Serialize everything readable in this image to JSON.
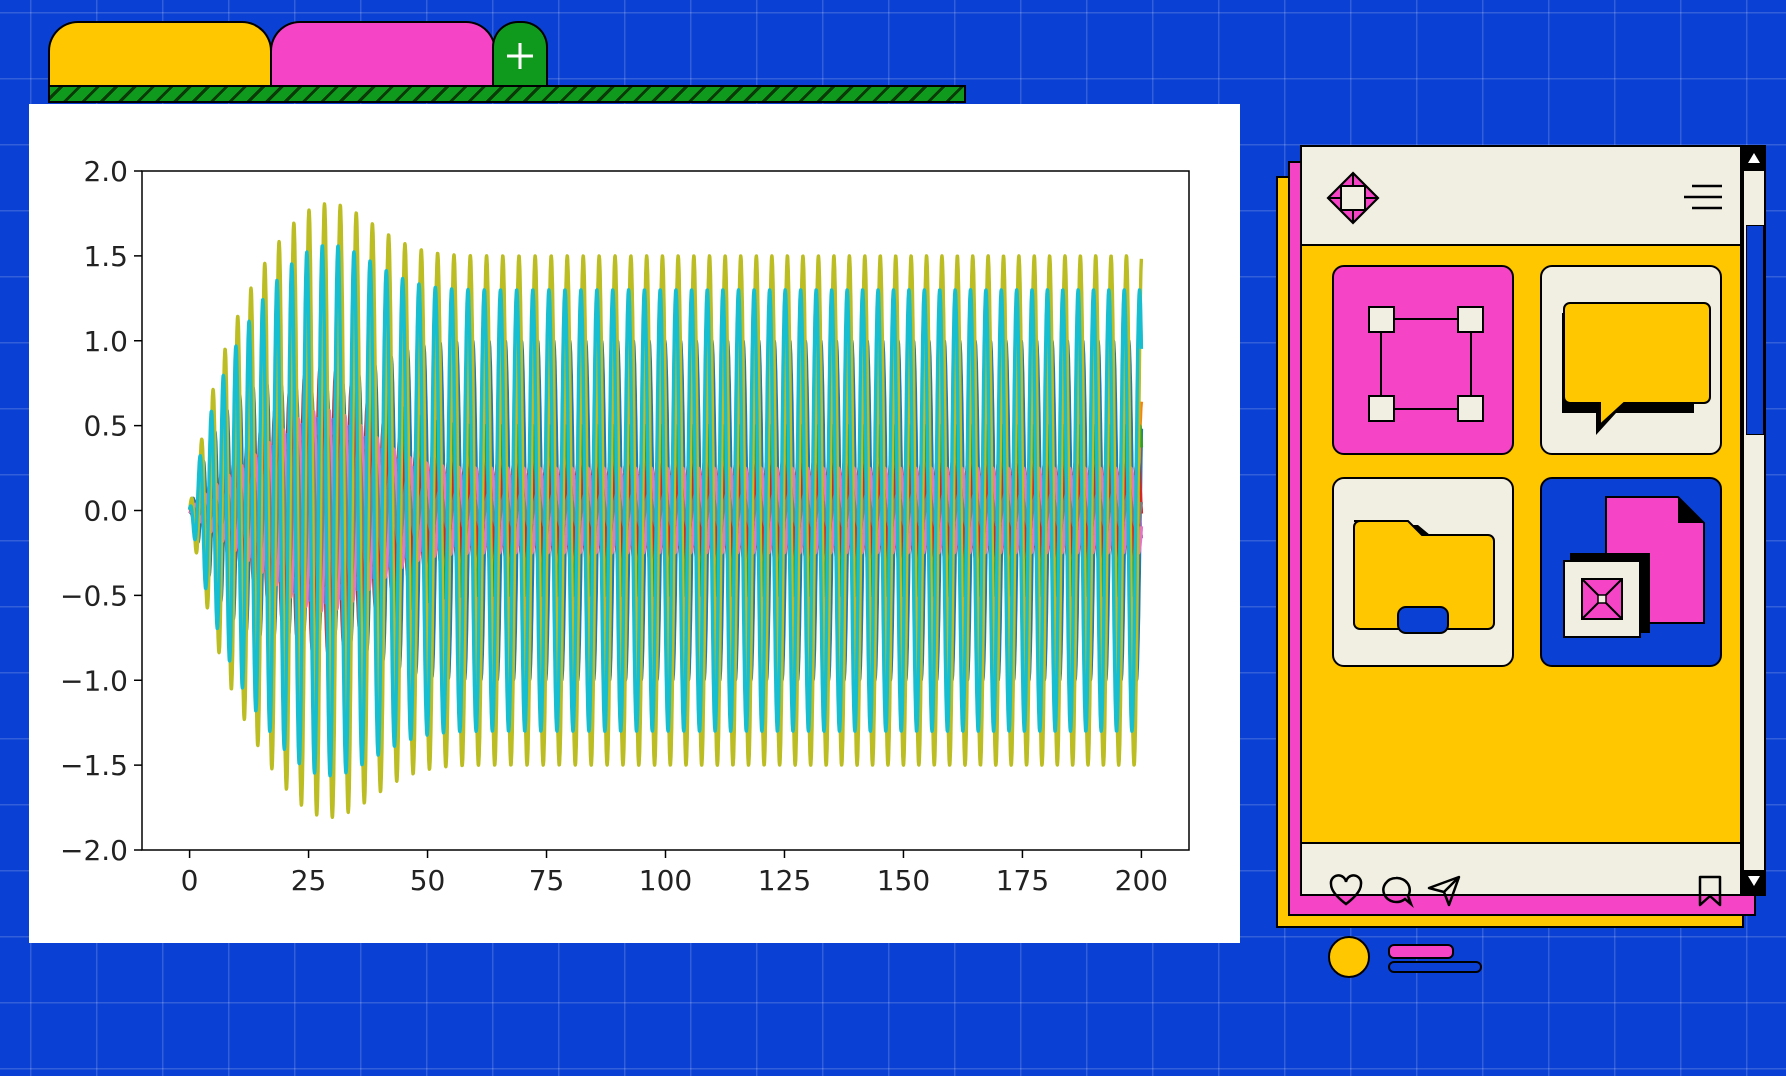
{
  "colors": {
    "background": "#0a40d3",
    "yellow": "#ffc700",
    "pink": "#f545c6",
    "green": "#109a1d",
    "cream": "#f1eee2"
  },
  "tabs": {
    "items": [
      {
        "name": "yellow-tab",
        "color": "#ffc700"
      },
      {
        "name": "pink-tab",
        "color": "#f545c6"
      }
    ],
    "add_icon": "plus-icon"
  },
  "phone": {
    "logo_icon": "diamond-logo-icon",
    "menu_icon": "hamburger-menu-icon",
    "tiles": [
      {
        "icon": "selection-box-icon",
        "color": "#f545c6"
      },
      {
        "icon": "chat-bubble-icon",
        "color": "#f1eee2"
      },
      {
        "icon": "folder-icon",
        "color": "#f1eee2"
      },
      {
        "icon": "files-icon",
        "color": "#0a40d3"
      }
    ],
    "actions": [
      "heart-icon",
      "comment-icon",
      "send-icon",
      "bookmark-icon"
    ]
  },
  "chart_data": {
    "type": "line",
    "title": "",
    "xlabel": "",
    "ylabel": "",
    "xlim": [
      -10,
      210
    ],
    "ylim": [
      -2.0,
      2.0
    ],
    "x_ticks": [
      0,
      25,
      50,
      75,
      100,
      125,
      150,
      175,
      200
    ],
    "x_tick_labels": [
      "0",
      "25",
      "50",
      "75",
      "100",
      "125",
      "150",
      "175",
      "200"
    ],
    "y_ticks": [
      2.0,
      1.5,
      1.0,
      0.5,
      0.0,
      -0.5,
      -1.0,
      -1.5,
      -2.0
    ],
    "y_tick_labels": [
      "2.0",
      "1.5",
      "1.0",
      "0.5",
      "0.0",
      "−0.5",
      "−1.0",
      "−1.5",
      "−2.0"
    ],
    "x_range": [
      0,
      200
    ],
    "grid": false,
    "legend": "none",
    "series": [
      {
        "color": "#1f77b4",
        "peak": 0.75,
        "steady": 1.0
      },
      {
        "color": "#ff7f0e",
        "peak": 1.15,
        "steady": 0.65
      },
      {
        "color": "#2ca02c",
        "peak": 0.95,
        "steady": 0.5
      },
      {
        "color": "#d62728",
        "peak": 0.85,
        "steady": 0.3
      },
      {
        "color": "#9467bd",
        "peak": 0.55,
        "steady": 0.2
      },
      {
        "color": "#8c564b",
        "peak": 0.45,
        "steady": 0.15
      },
      {
        "color": "#e377c2",
        "peak": 0.6,
        "steady": 0.25
      },
      {
        "color": "#7f7f7f",
        "peak": 0.5,
        "steady": 0.1
      },
      {
        "color": "#bcbd22",
        "peak": 1.85,
        "steady": 1.5
      },
      {
        "color": "#17becf",
        "peak": 1.6,
        "steady": 1.3
      }
    ]
  }
}
